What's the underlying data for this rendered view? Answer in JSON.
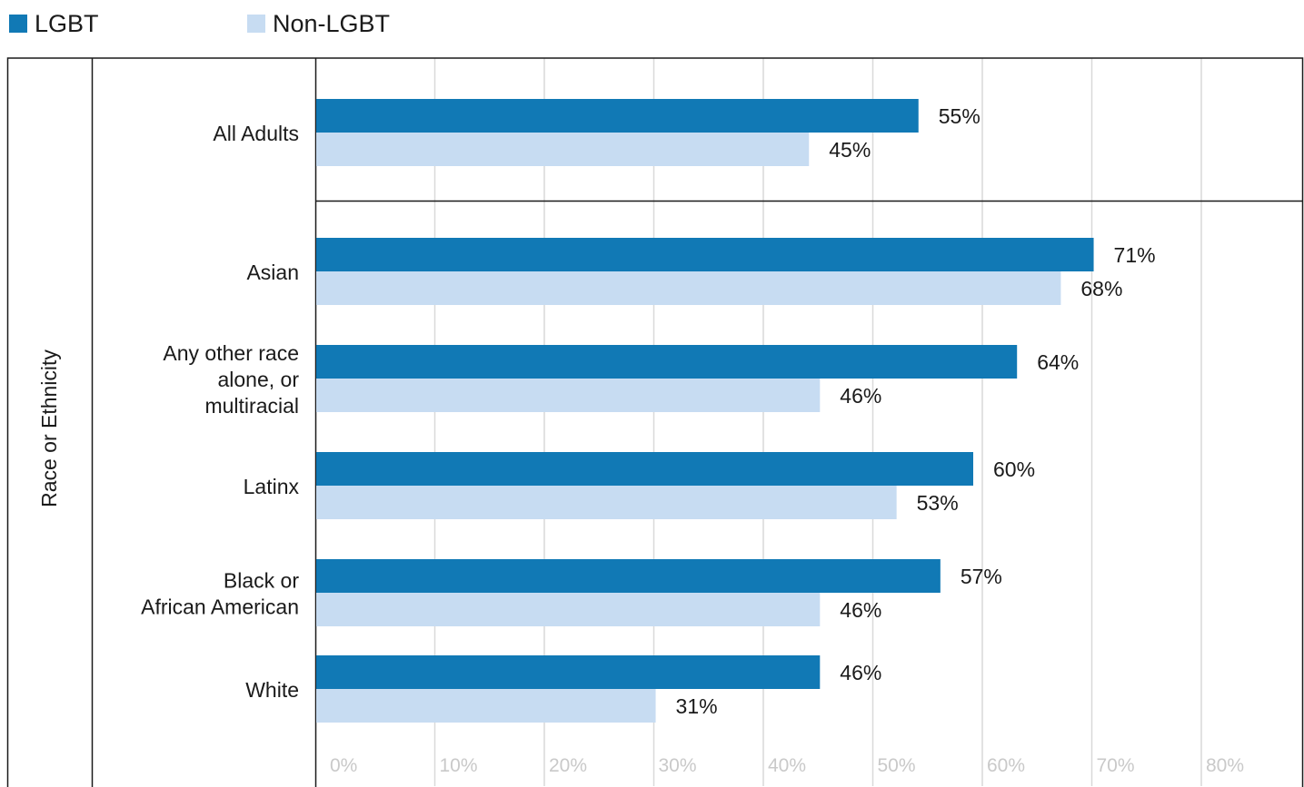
{
  "chart_data": {
    "type": "bar",
    "orientation": "horizontal",
    "ylabel": "Race or Ethnicity",
    "categories": [
      "All Adults",
      "Asian",
      "Any other race alone, or multiracial",
      "Latinx",
      "Black or African American",
      "White"
    ],
    "category_lines": [
      [
        "All Adults"
      ],
      [
        "Asian"
      ],
      [
        "Any other race",
        "alone, or",
        "multiracial"
      ],
      [
        "Latinx"
      ],
      [
        "Black or",
        "African American"
      ],
      [
        "White"
      ]
    ],
    "series": [
      {
        "name": "LGBT",
        "color": "#1179b5",
        "values": [
          55,
          71,
          64,
          60,
          57,
          46
        ],
        "labels": [
          "55%",
          "71%",
          "64%",
          "60%",
          "57%",
          "46%"
        ]
      },
      {
        "name": "Non-LGBT",
        "color": "#c7dcf2",
        "values": [
          45,
          68,
          46,
          53,
          46,
          31
        ],
        "labels": [
          "45%",
          "68%",
          "46%",
          "53%",
          "46%",
          "31%"
        ]
      }
    ],
    "xlim": [
      0,
      90
    ],
    "xticks": [
      "0%",
      "10%",
      "20%",
      "30%",
      "40%",
      "50%",
      "60%",
      "70%",
      "80%"
    ],
    "grid": true,
    "legend_position": "top-left"
  }
}
